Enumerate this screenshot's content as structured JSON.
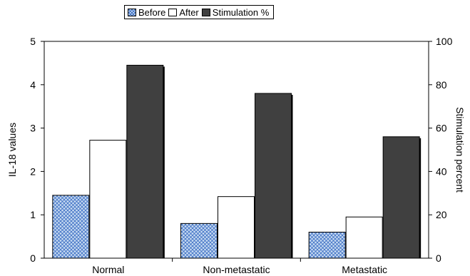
{
  "chart_data": {
    "type": "bar",
    "categories": [
      "Normal",
      "Non-metastatic",
      "Metastatic"
    ],
    "series": [
      {
        "name": "Before",
        "axis": "left",
        "values": [
          1.45,
          0.8,
          0.6
        ],
        "color": "#9db8e6",
        "pattern": "crosshatch"
      },
      {
        "name": "After",
        "axis": "left",
        "values": [
          2.72,
          1.42,
          0.95
        ],
        "color": "#ffffff",
        "pattern": "none"
      },
      {
        "name": "Stimulation %",
        "axis": "right",
        "values": [
          89,
          76,
          56
        ],
        "color": "#404040",
        "pattern": "none"
      }
    ],
    "ylabel": "IL-18 values",
    "ylim": [
      0,
      5
    ],
    "yticks": [
      0,
      1,
      2,
      3,
      4,
      5
    ],
    "y2label": "Stimulation percent",
    "y2lim": [
      0,
      100
    ],
    "y2ticks": [
      0,
      20,
      40,
      60,
      80,
      100
    ],
    "grid": false,
    "legend_position": "top-center"
  }
}
